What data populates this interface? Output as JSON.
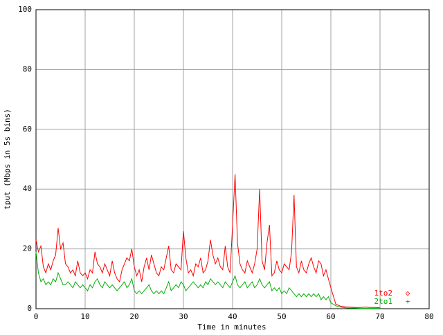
{
  "chart_data": {
    "type": "line",
    "xlabel": "Time in minutes",
    "ylabel": "tput (Mbps in 5s bins)",
    "xlim": [
      0,
      80
    ],
    "ylim": [
      0,
      100
    ],
    "xticks": [
      0,
      10,
      20,
      30,
      40,
      50,
      60,
      70,
      80
    ],
    "yticks": [
      0,
      20,
      40,
      60,
      80,
      100
    ],
    "grid": true,
    "legend": "lower right",
    "x": [
      0,
      0.5,
      1,
      1.5,
      2,
      2.5,
      3,
      3.5,
      4,
      4.5,
      5,
      5.5,
      6,
      6.5,
      7,
      7.5,
      8,
      8.5,
      9,
      9.5,
      10,
      10.5,
      11,
      11.5,
      12,
      12.5,
      13,
      13.5,
      14,
      14.5,
      15,
      15.5,
      16,
      16.5,
      17,
      17.5,
      18,
      18.5,
      19,
      19.5,
      20,
      20.5,
      21,
      21.5,
      22,
      22.5,
      23,
      23.5,
      24,
      24.5,
      25,
      25.5,
      26,
      26.5,
      27,
      27.5,
      28,
      28.5,
      29,
      29.5,
      30,
      30.5,
      31,
      31.5,
      32,
      32.5,
      33,
      33.5,
      34,
      34.5,
      35,
      35.5,
      36,
      36.5,
      37,
      37.5,
      38,
      38.5,
      39,
      39.5,
      40,
      40.5,
      41,
      41.5,
      42,
      42.5,
      43,
      43.5,
      44,
      44.5,
      45,
      45.5,
      46,
      46.5,
      47,
      47.5,
      48,
      48.5,
      49,
      49.5,
      50,
      50.5,
      51,
      51.5,
      52,
      52.5,
      53,
      53.5,
      54,
      54.5,
      55,
      55.5,
      56,
      56.5,
      57,
      57.5,
      58,
      58.5,
      59,
      59.5,
      60,
      61,
      62,
      63,
      64,
      65,
      66,
      67,
      68,
      69,
      70
    ],
    "series": [
      {
        "name": "1to2",
        "color": "#ff0000",
        "values": [
          23,
          19,
          21,
          14,
          12,
          15,
          13,
          16,
          18,
          27,
          20,
          22,
          15,
          14,
          12,
          13,
          11,
          16,
          12,
          11,
          12,
          10,
          13,
          12,
          19,
          15,
          14,
          12,
          15,
          13,
          11,
          16,
          12,
          10,
          9,
          13,
          15,
          17,
          16,
          20,
          14,
          11,
          13,
          9,
          14,
          17,
          13,
          18,
          15,
          12,
          11,
          14,
          13,
          17,
          21,
          13,
          12,
          15,
          14,
          13,
          26,
          17,
          12,
          13,
          11,
          15,
          14,
          17,
          12,
          13,
          16,
          23,
          18,
          15,
          17,
          14,
          13,
          21,
          14,
          12,
          28,
          45,
          22,
          15,
          13,
          12,
          16,
          14,
          12,
          15,
          20,
          40,
          16,
          13,
          22,
          28,
          11,
          12,
          16,
          13,
          12,
          15,
          14,
          13,
          19,
          38,
          14,
          12,
          16,
          13,
          12,
          15,
          17,
          14,
          12,
          16,
          15,
          11,
          13,
          10,
          7,
          1.5,
          0.8,
          0.6,
          0.5,
          0.4,
          0.4,
          0.5,
          0.4,
          0.4,
          0.3
        ]
      },
      {
        "name": "2to1",
        "color": "#00b000",
        "values": [
          19,
          12,
          9,
          10,
          8,
          9,
          8,
          10,
          9,
          12,
          10,
          8,
          8,
          9,
          8,
          7,
          9,
          8,
          7,
          8,
          7,
          6,
          8,
          7,
          9,
          10,
          8,
          7,
          9,
          8,
          7,
          8,
          7,
          6,
          7,
          8,
          9,
          7,
          8,
          10,
          6,
          5,
          6,
          5,
          6,
          7,
          8,
          6,
          5,
          6,
          5,
          6,
          5,
          7,
          9,
          6,
          7,
          8,
          7,
          9,
          8,
          6,
          7,
          8,
          9,
          8,
          7,
          8,
          7,
          9,
          8,
          10,
          9,
          8,
          9,
          8,
          7,
          9,
          8,
          7,
          9,
          11,
          8,
          7,
          8,
          9,
          7,
          8,
          9,
          7,
          8,
          10,
          8,
          7,
          8,
          9,
          6,
          7,
          6,
          7,
          5,
          6,
          5,
          7,
          6,
          5,
          4,
          5,
          4,
          5,
          4,
          5,
          4,
          5,
          4,
          5,
          3,
          4,
          3,
          4,
          2,
          1,
          0.5,
          0.3,
          0.2,
          0.2,
          0.1,
          0.1,
          0.1,
          0.1,
          0.1
        ]
      }
    ]
  }
}
